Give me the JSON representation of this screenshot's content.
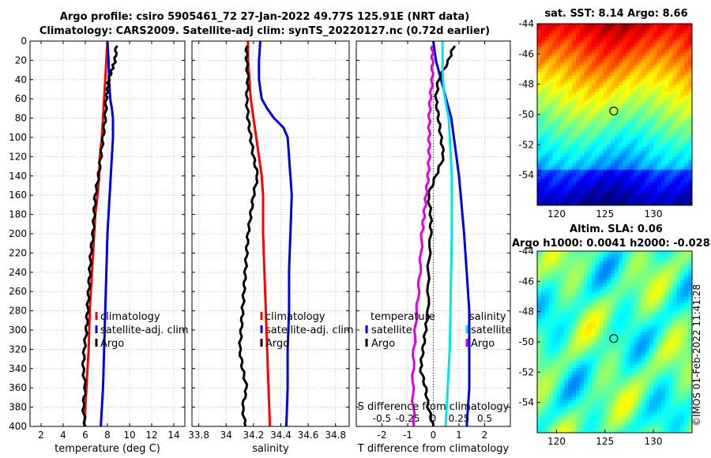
{
  "header": {
    "title_line1": "Argo profile: csiro 5905461_72 27-Jan-2022 49.77S 125.91E (NRT data)",
    "title_line2": "Climatology: CARS2009. Satellite-adj clim: synTS_20220127.nc (0.72d earlier)"
  },
  "colors": {
    "climatology": "#ff0000",
    "satellite_adj": "#0000dd",
    "argo": "#000000",
    "salinity_sat": "#00e5e5",
    "salinity_argo": "#e000e0"
  },
  "chart_data": [
    {
      "type": "line",
      "id": "temperature",
      "xlabel": "temperature (deg C)",
      "ylabel": "",
      "xlim": [
        1,
        15
      ],
      "ylim": [
        400,
        0
      ],
      "xticks": [
        2,
        4,
        6,
        8,
        10,
        12,
        14
      ],
      "xtick_labels": [
        "2",
        "4",
        "6",
        "8",
        "10",
        "12",
        "14"
      ],
      "yticks": [
        0,
        20,
        40,
        60,
        80,
        100,
        120,
        140,
        160,
        180,
        200,
        220,
        240,
        260,
        280,
        300,
        320,
        340,
        360,
        380,
        400
      ],
      "ytick_labels": [
        "0",
        "20",
        "40",
        "60",
        "80",
        "100",
        "120",
        "140",
        "160",
        "180",
        "200",
        "220",
        "240",
        "260",
        "280",
        "300",
        "320",
        "340",
        "360",
        "380",
        "400"
      ],
      "legend": [
        "climatology",
        "satellite-adj. clim",
        "Argo"
      ],
      "series": [
        {
          "name": "climatology",
          "color_key": "climatology",
          "points": [
            [
              8.0,
              0
            ],
            [
              7.9,
              20
            ],
            [
              7.8,
              40
            ],
            [
              7.7,
              60
            ],
            [
              7.6,
              80
            ],
            [
              7.5,
              100
            ],
            [
              7.4,
              110
            ],
            [
              7.3,
              120
            ],
            [
              7.25,
              140
            ],
            [
              7.1,
              160
            ],
            [
              6.9,
              180
            ],
            [
              6.8,
              200
            ],
            [
              6.7,
              220
            ],
            [
              6.6,
              240
            ],
            [
              6.5,
              260
            ],
            [
              6.4,
              280
            ],
            [
              6.35,
              300
            ],
            [
              6.3,
              320
            ],
            [
              6.2,
              340
            ],
            [
              6.1,
              360
            ],
            [
              6.0,
              380
            ],
            [
              5.9,
              400
            ]
          ]
        },
        {
          "name": "satellite-adj. clim",
          "color_key": "satellite_adj",
          "points": [
            [
              8.0,
              0
            ],
            [
              8.1,
              20
            ],
            [
              8.15,
              40
            ],
            [
              8.25,
              60
            ],
            [
              8.4,
              70
            ],
            [
              8.5,
              80
            ],
            [
              8.5,
              100
            ],
            [
              8.4,
              120
            ],
            [
              8.3,
              140
            ],
            [
              8.2,
              160
            ],
            [
              8.1,
              180
            ],
            [
              8.0,
              200
            ],
            [
              7.95,
              220
            ],
            [
              7.9,
              240
            ],
            [
              7.85,
              260
            ],
            [
              7.8,
              280
            ],
            [
              7.75,
              300
            ],
            [
              7.7,
              320
            ],
            [
              7.65,
              340
            ],
            [
              7.6,
              360
            ],
            [
              7.5,
              380
            ],
            [
              7.4,
              400
            ]
          ]
        },
        {
          "name": "Argo",
          "color_key": "argo",
          "points": [
            [
              8.8,
              5
            ],
            [
              8.7,
              20
            ],
            [
              8.4,
              30
            ],
            [
              8.1,
              40
            ],
            [
              8.0,
              50
            ],
            [
              7.9,
              60
            ],
            [
              7.8,
              80
            ],
            [
              7.6,
              100
            ],
            [
              7.4,
              120
            ],
            [
              7.2,
              140
            ],
            [
              6.9,
              160
            ],
            [
              6.8,
              180
            ],
            [
              6.7,
              200
            ],
            [
              6.5,
              220
            ],
            [
              6.4,
              240
            ],
            [
              6.3,
              260
            ],
            [
              6.2,
              280
            ],
            [
              6.1,
              300
            ],
            [
              5.9,
              320
            ],
            [
              5.8,
              340
            ],
            [
              6.0,
              360
            ],
            [
              5.8,
              380
            ],
            [
              6.0,
              400
            ]
          ]
        }
      ]
    },
    {
      "type": "line",
      "id": "salinity",
      "xlabel": "salinity",
      "ylabel": "",
      "xlim": [
        33.75,
        34.9
      ],
      "ylim": [
        400,
        0
      ],
      "xticks": [
        33.8,
        34.0,
        34.2,
        34.4,
        34.6,
        34.8
      ],
      "xtick_labels": [
        "33.8",
        "34",
        "34.2",
        "34.4",
        "34.6",
        "34.8"
      ],
      "legend": [
        "climatology",
        "satellite-adj. clim",
        "Argo"
      ],
      "series": [
        {
          "name": "climatology",
          "color_key": "climatology",
          "points": [
            [
              34.16,
              0
            ],
            [
              34.16,
              20
            ],
            [
              34.17,
              40
            ],
            [
              34.18,
              60
            ],
            [
              34.2,
              80
            ],
            [
              34.22,
              100
            ],
            [
              34.24,
              120
            ],
            [
              34.26,
              140
            ],
            [
              34.27,
              160
            ],
            [
              34.27,
              200
            ],
            [
              34.28,
              240
            ],
            [
              34.29,
              280
            ],
            [
              34.3,
              320
            ],
            [
              34.31,
              360
            ],
            [
              34.32,
              400
            ]
          ]
        },
        {
          "name": "satellite-adj. clim",
          "color_key": "satellite_adj",
          "points": [
            [
              34.25,
              0
            ],
            [
              34.24,
              20
            ],
            [
              34.24,
              40
            ],
            [
              34.26,
              60
            ],
            [
              34.3,
              70
            ],
            [
              34.35,
              80
            ],
            [
              34.42,
              90
            ],
            [
              34.45,
              100
            ],
            [
              34.47,
              140
            ],
            [
              34.48,
              160
            ],
            [
              34.47,
              200
            ],
            [
              34.46,
              240
            ],
            [
              34.46,
              280
            ],
            [
              34.45,
              320
            ],
            [
              34.45,
              360
            ],
            [
              34.44,
              400
            ]
          ]
        },
        {
          "name": "Argo",
          "color_key": "argo",
          "points": [
            [
              34.15,
              5
            ],
            [
              34.15,
              20
            ],
            [
              34.16,
              40
            ],
            [
              34.15,
              60
            ],
            [
              34.16,
              80
            ],
            [
              34.18,
              100
            ],
            [
              34.2,
              120
            ],
            [
              34.23,
              140
            ],
            [
              34.2,
              160
            ],
            [
              34.18,
              180
            ],
            [
              34.16,
              200
            ],
            [
              34.15,
              220
            ],
            [
              34.14,
              240
            ],
            [
              34.13,
              260
            ],
            [
              34.12,
              280
            ],
            [
              34.11,
              300
            ],
            [
              34.1,
              320
            ],
            [
              34.12,
              340
            ],
            [
              34.15,
              360
            ],
            [
              34.12,
              380
            ],
            [
              34.14,
              400
            ]
          ]
        }
      ]
    },
    {
      "type": "line",
      "id": "differences",
      "xlabel": "T difference from climatology",
      "secondary_axis_label": "S difference from climatology",
      "xlim": [
        -3,
        3
      ],
      "ylim": [
        400,
        0
      ],
      "xticks": [
        -2,
        -1,
        0,
        1,
        2
      ],
      "xtick_labels": [
        "-2",
        "-1",
        "0",
        "1",
        "2"
      ],
      "secondary_xticks": [
        -0.5,
        -0.25,
        0,
        0.25,
        0.5
      ],
      "secondary_xtick_labels": [
        "-0.5",
        "-0.25",
        "0",
        "0.25",
        "0.5"
      ],
      "secondary_xlim": [
        -0.75,
        0.75
      ],
      "legend_left_title": "temperature",
      "legend_right_title": "salinity",
      "legend_left": [
        "satellite",
        "Argo"
      ],
      "legend_right": [
        "satellite",
        "Argo"
      ],
      "series": [
        {
          "name": "temperature satellite",
          "color_key": "satellite_adj",
          "points": [
            [
              0.0,
              0
            ],
            [
              0.1,
              20
            ],
            [
              0.3,
              40
            ],
            [
              0.5,
              60
            ],
            [
              0.7,
              80
            ],
            [
              0.8,
              100
            ],
            [
              1.0,
              140
            ],
            [
              1.2,
              200
            ],
            [
              1.3,
              240
            ],
            [
              1.4,
              280
            ],
            [
              1.4,
              320
            ],
            [
              1.4,
              360
            ],
            [
              1.3,
              400
            ]
          ]
        },
        {
          "name": "temperature Argo",
          "color_key": "argo",
          "points": [
            [
              0.8,
              5
            ],
            [
              0.6,
              20
            ],
            [
              0.2,
              40
            ],
            [
              0.1,
              60
            ],
            [
              0.2,
              80
            ],
            [
              0.3,
              100
            ],
            [
              0.4,
              120
            ],
            [
              0.1,
              140
            ],
            [
              -0.2,
              160
            ],
            [
              -0.1,
              180
            ],
            [
              -0.1,
              200
            ],
            [
              -0.2,
              240
            ],
            [
              -0.2,
              280
            ],
            [
              -0.3,
              300
            ],
            [
              -0.4,
              320
            ],
            [
              -0.5,
              340
            ],
            [
              -0.3,
              360
            ],
            [
              -0.2,
              380
            ],
            [
              0.0,
              400
            ]
          ]
        },
        {
          "name": "salinity satellite",
          "color_key": "salinity_sat",
          "points": [
            [
              0.09,
              0
            ],
            [
              0.09,
              30
            ],
            [
              0.1,
              50
            ],
            [
              0.13,
              70
            ],
            [
              0.15,
              80
            ],
            [
              0.16,
              100
            ],
            [
              0.18,
              140
            ],
            [
              0.18,
              200
            ],
            [
              0.17,
              260
            ],
            [
              0.16,
              320
            ],
            [
              0.14,
              360
            ],
            [
              0.12,
              400
            ]
          ]
        },
        {
          "name": "salinity Argo",
          "color_key": "salinity_argo",
          "points": [
            [
              -0.01,
              5
            ],
            [
              -0.01,
              20
            ],
            [
              -0.01,
              40
            ],
            [
              -0.03,
              60
            ],
            [
              -0.04,
              80
            ],
            [
              -0.04,
              100
            ],
            [
              -0.04,
              120
            ],
            [
              -0.05,
              140
            ],
            [
              -0.07,
              160
            ],
            [
              -0.09,
              180
            ],
            [
              -0.11,
              200
            ],
            [
              -0.13,
              240
            ],
            [
              -0.16,
              280
            ],
            [
              -0.19,
              320
            ],
            [
              -0.2,
              360
            ],
            [
              -0.19,
              400
            ]
          ]
        }
      ]
    },
    {
      "type": "heatmap",
      "id": "sst_map",
      "title": "sat. SST: 8.14 Argo: 8.66",
      "xlim": [
        118,
        134
      ],
      "ylim": [
        -56,
        -44
      ],
      "xticks": [
        120,
        125,
        130
      ],
      "xtick_labels": [
        "120",
        "125",
        "130"
      ],
      "yticks": [
        -44,
        -46,
        -48,
        -50,
        -52,
        -54
      ],
      "ytick_labels": [
        "-44",
        "-46",
        "-48",
        "-50",
        "-52",
        "-54"
      ],
      "marker": [
        125.91,
        -49.77
      ]
    },
    {
      "type": "heatmap",
      "id": "sla_map",
      "title": "Altim. SLA: 0.06",
      "subtitle": "Argo h1000: 0.0041 h2000: -0.028",
      "xlim": [
        118,
        134
      ],
      "ylim": [
        -56,
        -44
      ],
      "xticks": [
        120,
        125,
        130
      ],
      "xtick_labels": [
        "120",
        "125",
        "130"
      ],
      "yticks": [
        -44,
        -46,
        -48,
        -50,
        -52,
        -54
      ],
      "ytick_labels": [
        "-44",
        "-46",
        "-48",
        "-50",
        "-52",
        "-54"
      ],
      "marker": [
        125.91,
        -49.77
      ]
    }
  ],
  "credit": "©IMOS 01-Feb-2022 11:41:28"
}
